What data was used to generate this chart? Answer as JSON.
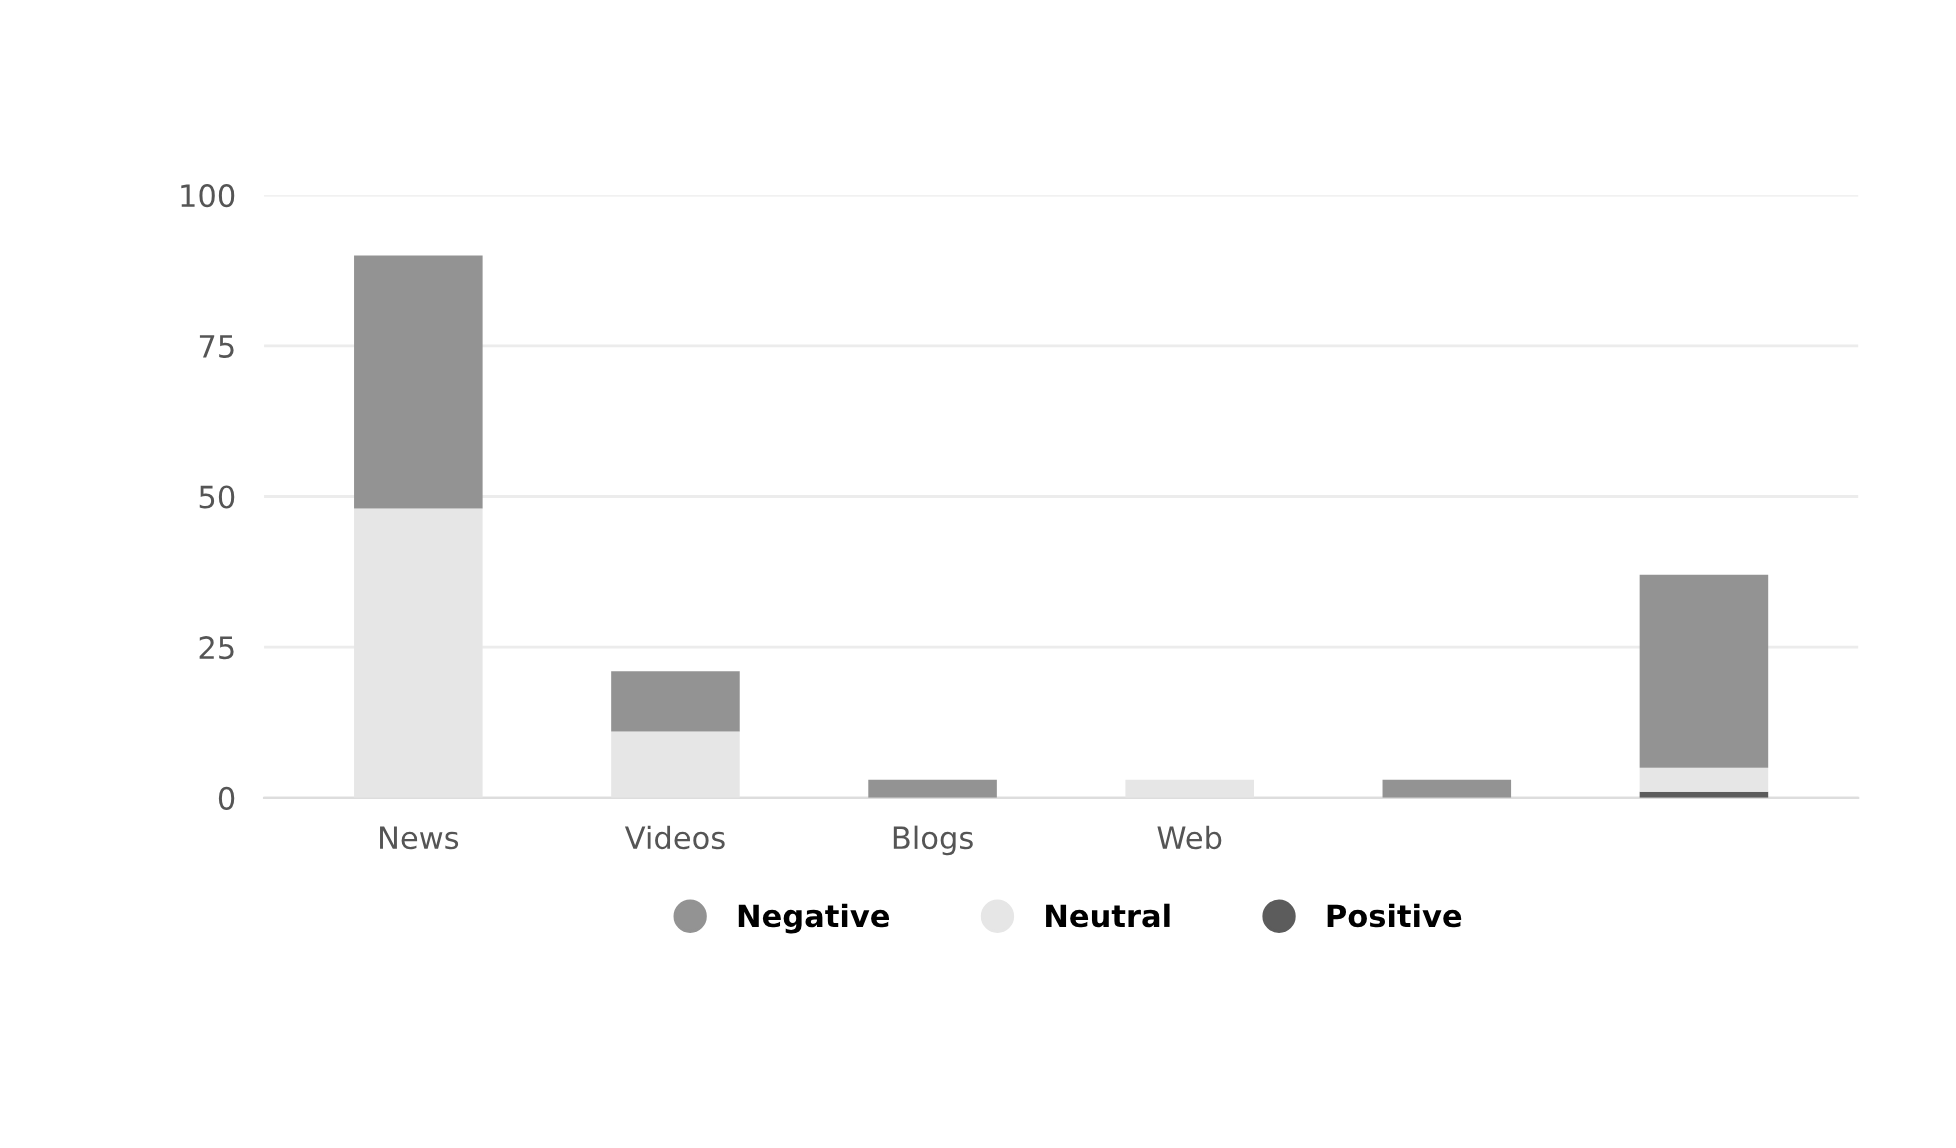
{
  "chart_data": {
    "type": "bar",
    "stacked": true,
    "categories": [
      "News",
      "Videos",
      "Blogs",
      "Web",
      null,
      null
    ],
    "series": [
      {
        "name": "Positive",
        "color": "#5c5c5c",
        "values": [
          0,
          0,
          0,
          0,
          0,
          1
        ]
      },
      {
        "name": "Neutral",
        "color": "#e6e6e6",
        "values": [
          48,
          11,
          0,
          3,
          0,
          4
        ]
      },
      {
        "name": "Negative",
        "color": "#939393",
        "values": [
          42,
          10,
          3,
          0,
          3,
          32
        ]
      }
    ],
    "ylim": [
      0,
      100
    ],
    "yticks": [
      0,
      25,
      50,
      75,
      100
    ],
    "grid": "y",
    "legend": "bottom"
  }
}
